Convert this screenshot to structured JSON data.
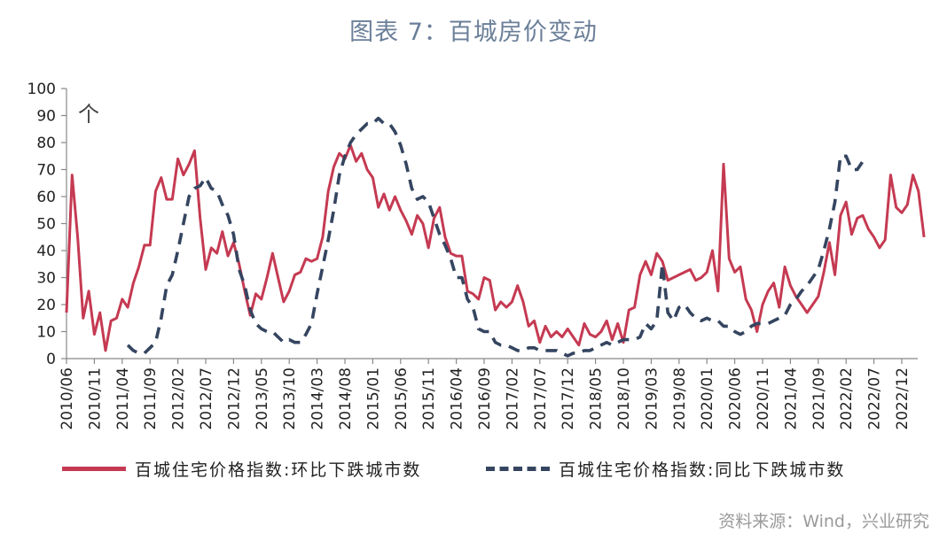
{
  "chart_data": {
    "type": "line",
    "title": "图表 7：百城房价变动",
    "ylabel": "个",
    "xlabel": "",
    "ylim": [
      0,
      100
    ],
    "yticks": [
      0,
      10,
      20,
      30,
      40,
      50,
      60,
      70,
      80,
      90,
      100
    ],
    "start": "2010/06",
    "xticks": [
      "2010/06",
      "2010/11",
      "2011/04",
      "2011/09",
      "2012/02",
      "2012/07",
      "2012/12",
      "2013/05",
      "2013/10",
      "2014/03",
      "2014/08",
      "2015/01",
      "2015/06",
      "2015/11",
      "2016/04",
      "2016/09",
      "2017/02",
      "2017/07",
      "2017/12",
      "2018/05",
      "2018/10",
      "2019/03",
      "2019/08",
      "2020/01",
      "2020/06",
      "2020/11",
      "2021/04",
      "2021/09",
      "2022/02",
      "2022/07",
      "2022/12"
    ],
    "series": [
      {
        "name": "百城住宅价格指数:环比下跌城市数",
        "color": "#c53a52",
        "style": "solid",
        "values": [
          17,
          68,
          45,
          15,
          25,
          9,
          17,
          3,
          14,
          15,
          22,
          19,
          28,
          34,
          42,
          42,
          62,
          67,
          59,
          59,
          74,
          68,
          72,
          77,
          52,
          33,
          41,
          39,
          47,
          38,
          43,
          35,
          25,
          16,
          24,
          22,
          30,
          39,
          30,
          21,
          25,
          31,
          32,
          37,
          36,
          37,
          45,
          62,
          71,
          76,
          74,
          79,
          73,
          76,
          70,
          67,
          56,
          61,
          55,
          60,
          55,
          51,
          46,
          53,
          50,
          41,
          52,
          56,
          45,
          39,
          38,
          38,
          25,
          24,
          22,
          30,
          29,
          18,
          21,
          19,
          21,
          27,
          21,
          12,
          14,
          6,
          12,
          8,
          10,
          8,
          11,
          8,
          5,
          13,
          9,
          8,
          10,
          14,
          7,
          13,
          6,
          18,
          19,
          31,
          36,
          31,
          39,
          36,
          29,
          30,
          31,
          32,
          33,
          29,
          30,
          32,
          40,
          25,
          72,
          37,
          32,
          34,
          22,
          18,
          10,
          20,
          25,
          28,
          19,
          34,
          27,
          23,
          20,
          17,
          20,
          23,
          32,
          43,
          31,
          53,
          58,
          46,
          52,
          53,
          48,
          45,
          41,
          44,
          68,
          56,
          54,
          57,
          68,
          62,
          45
        ]
      },
      {
        "name": "百城住宅价格指数:同比下跌城市数",
        "color": "#354560",
        "style": "dashed",
        "start_index": 11,
        "values": [
          5,
          3,
          2,
          2,
          4,
          6,
          15,
          27,
          31,
          40,
          50,
          60,
          63,
          64,
          67,
          63,
          62,
          57,
          53,
          46,
          33,
          27,
          18,
          13,
          11,
          10,
          10,
          8,
          6,
          7,
          6,
          6,
          9,
          13,
          24,
          34,
          44,
          55,
          68,
          75,
          80,
          83,
          85,
          87,
          87,
          89,
          87,
          87,
          84,
          79,
          72,
          63,
          59,
          60,
          58,
          52,
          46,
          42,
          37,
          30,
          30,
          22,
          19,
          11,
          10,
          10,
          6,
          5,
          5,
          4,
          3,
          3,
          4,
          4,
          3,
          3,
          3,
          3,
          2,
          1,
          2,
          2,
          3,
          3,
          4,
          5,
          6,
          5,
          6,
          7,
          7,
          7,
          8,
          13,
          11,
          14,
          35,
          17,
          14,
          19,
          20,
          17,
          15,
          14,
          15,
          14,
          14,
          12,
          12,
          10,
          9,
          10,
          12,
          13,
          13,
          13,
          14,
          15,
          16,
          20,
          22,
          25,
          27,
          30,
          33,
          40,
          48,
          58,
          75,
          75,
          70,
          70,
          73
        ]
      }
    ],
    "source": "资料来源：Wind，兴业研究"
  }
}
